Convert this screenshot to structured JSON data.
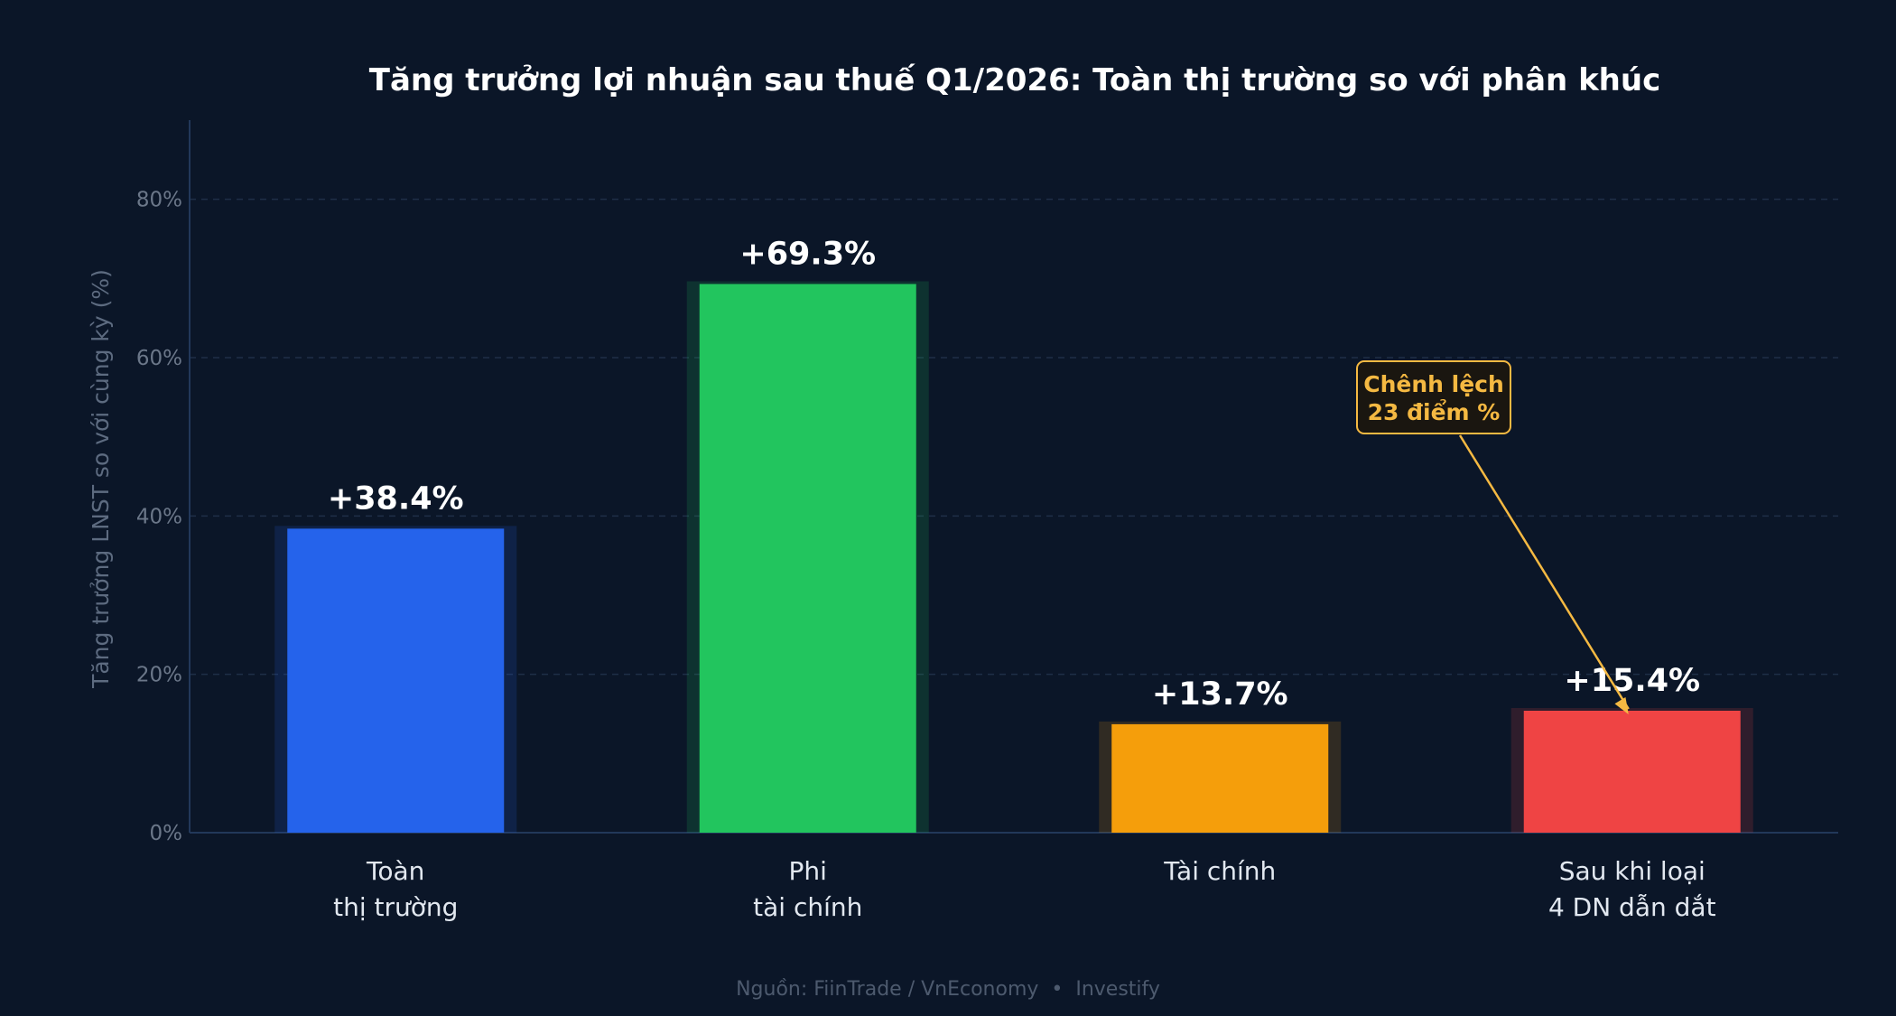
{
  "chart_data": {
    "type": "bar",
    "title": "Tăng trưởng lợi nhuận sau thuế Q1/2026: Toàn thị trường so với phân khúc",
    "xlabel": "",
    "ylabel": "Tăng trưởng LNST so với cùng kỳ (%)",
    "ylim": [
      0,
      90
    ],
    "yticks": [
      0,
      20,
      40,
      60,
      80
    ],
    "ytick_labels": [
      "0%",
      "20%",
      "40%",
      "60%",
      "80%"
    ],
    "grid": true,
    "categories": [
      [
        "Toàn",
        "thị trường"
      ],
      [
        "Phi",
        "tài chính"
      ],
      [
        "Tài chính"
      ],
      [
        "Sau khi loại",
        "4 DN dẫn dắt"
      ]
    ],
    "values": [
      38.4,
      69.3,
      13.7,
      15.4
    ],
    "value_labels": [
      "+38.4%",
      "+69.3%",
      "+13.7%",
      "+15.4%"
    ],
    "colors": [
      "#2563eb",
      "#22c55e",
      "#f59e0b",
      "#ef4444"
    ],
    "annotation": {
      "lines": [
        "Chênh lệch",
        "23 điểm %"
      ],
      "color": "#f5b942",
      "target_category_index": 3
    }
  },
  "source": "Nguồn: FiinTrade / VnEconomy  •  Investify"
}
